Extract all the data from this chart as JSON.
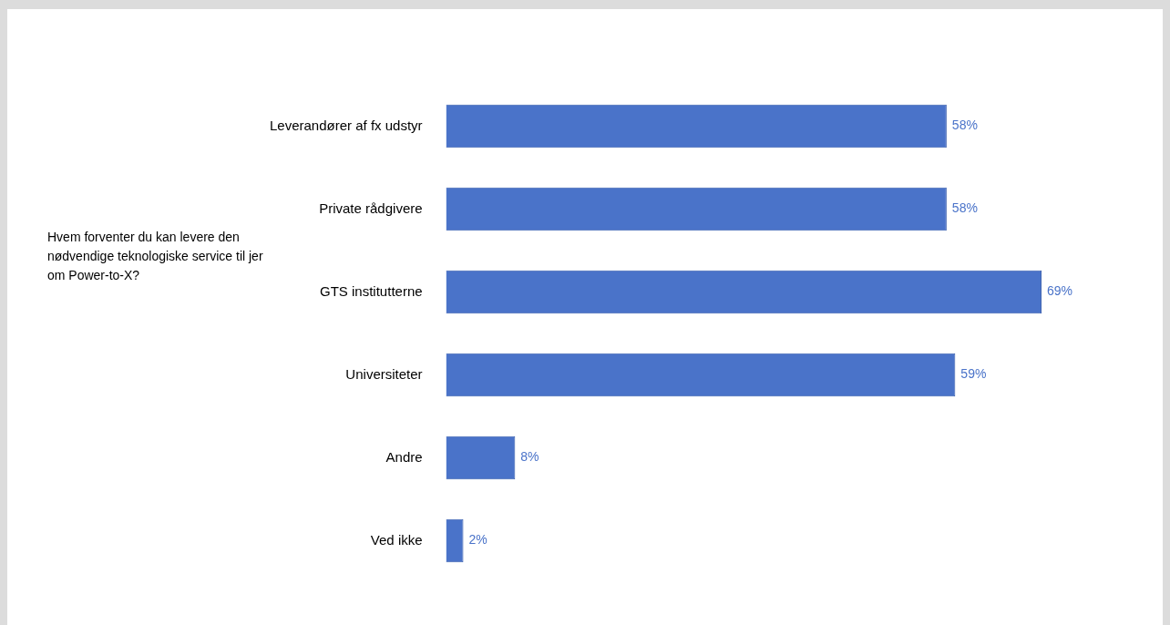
{
  "chart_data": {
    "type": "bar",
    "orientation": "horizontal",
    "title": "Hvem forventer du kan levere den nødvendige teknologiske service til jer om Power-to-X?",
    "categories": [
      "Leverandører af fx udstyr",
      "Private rådgivere",
      "GTS institutterne",
      "Universiteter",
      "Andre",
      "Ved ikke"
    ],
    "values": [
      58,
      58,
      69,
      59,
      8,
      2
    ],
    "value_labels": [
      "58%",
      "58%",
      "69%",
      "59%",
      "8%",
      "2%"
    ],
    "color": "#4a73c9",
    "grid": false,
    "legend": false
  }
}
